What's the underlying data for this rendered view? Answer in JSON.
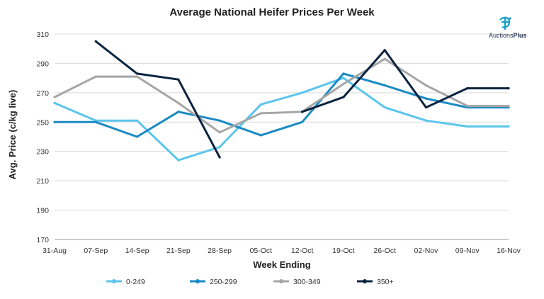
{
  "brand": {
    "name_prefix": "Auctions",
    "name_suffix": "Plus",
    "icon": "auctionsplus-logo-icon",
    "colors": {
      "accent": "#1aa0c9",
      "dark": "#1e2c4a"
    }
  },
  "chart_data": {
    "type": "line",
    "title": "Average National Heifer Prices Per Week",
    "xlabel": "Week Ending",
    "ylabel": "Avg. Price (c/kg live)",
    "ylim": [
      170,
      310
    ],
    "yticks": [
      170,
      190,
      210,
      230,
      250,
      270,
      290,
      310
    ],
    "grid": "horizontal",
    "legend_position": "bottom",
    "categories": [
      "31-Aug",
      "07-Sep",
      "14-Sep",
      "21-Sep",
      "28-Sep",
      "05-Oct",
      "12-Oct",
      "19-Oct",
      "26-Oct",
      "02-Nov",
      "09-Nov",
      "16-Nov"
    ],
    "series": [
      {
        "name": "0-249",
        "color": "#5bc5eb",
        "values": [
          263,
          251,
          251,
          224,
          233,
          262,
          270,
          280,
          260,
          251,
          247,
          247
        ]
      },
      {
        "name": "250-299",
        "color": "#1b8ac4",
        "values": [
          250,
          250,
          240,
          257,
          251,
          241,
          250,
          283,
          275,
          266,
          260,
          260
        ]
      },
      {
        "name": "300-349",
        "color": "#a6a6a6",
        "values": [
          267,
          281,
          281,
          263,
          243,
          256,
          257,
          276,
          293,
          275,
          261,
          261
        ]
      },
      {
        "name": "350+",
        "color": "#0c2440",
        "values": [
          null,
          305,
          283,
          279,
          226,
          null,
          257,
          267,
          299,
          260,
          273,
          273
        ]
      }
    ]
  }
}
